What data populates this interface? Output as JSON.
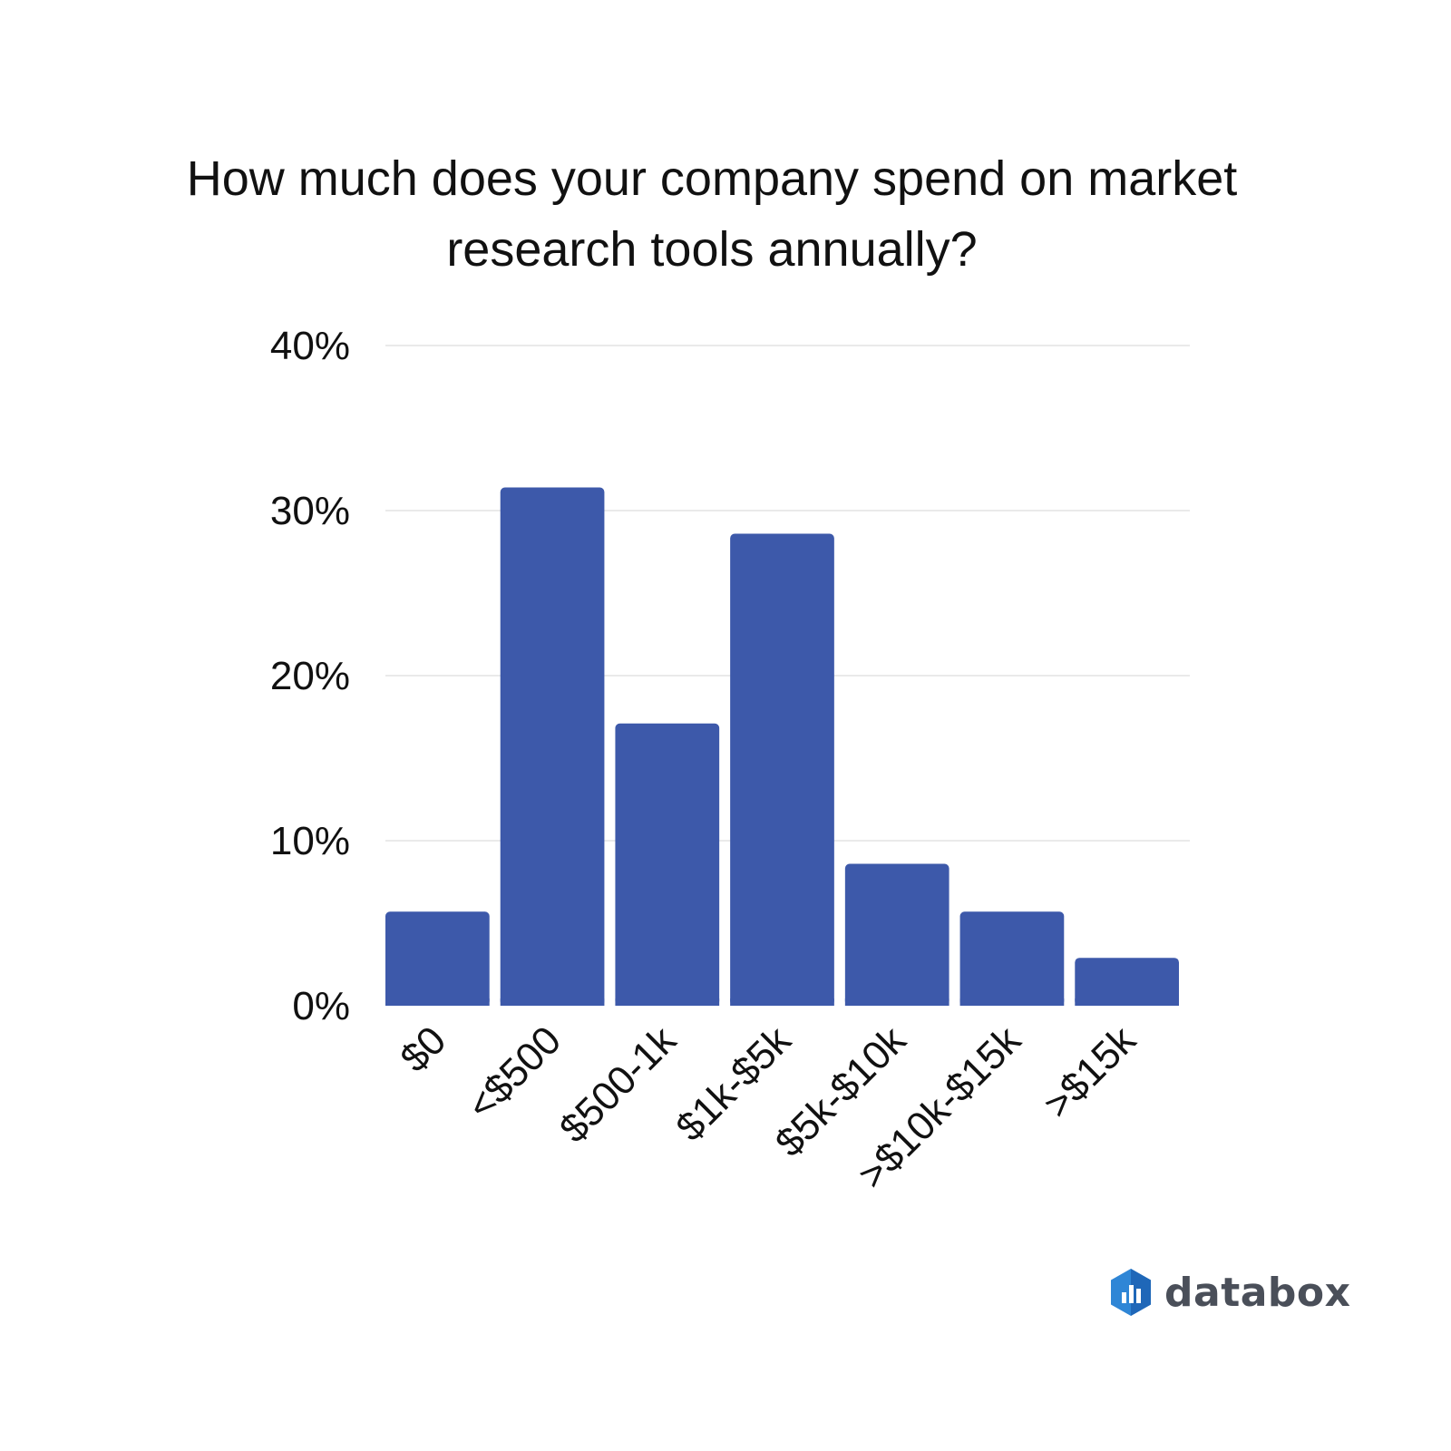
{
  "chart_data": {
    "type": "bar",
    "title": "How much does your company spend on market research tools annually?",
    "categories": [
      "$0",
      "<$500",
      "$500-1k",
      "$1k-$5k",
      "$5k-$10k",
      ">$10k-$15k",
      ">$15k"
    ],
    "values": [
      5.7,
      31.4,
      17.1,
      28.6,
      8.6,
      5.7,
      2.9
    ],
    "ylim": [
      0,
      40
    ],
    "yticks": [
      "0%",
      "10%",
      "20%",
      "30%",
      "40%"
    ],
    "ytick_values": [
      0,
      10,
      20,
      30,
      40
    ],
    "grid": true,
    "bar_color": "#3d59aa"
  },
  "brand": {
    "name": "databox",
    "icon": "databox-logo-icon"
  }
}
